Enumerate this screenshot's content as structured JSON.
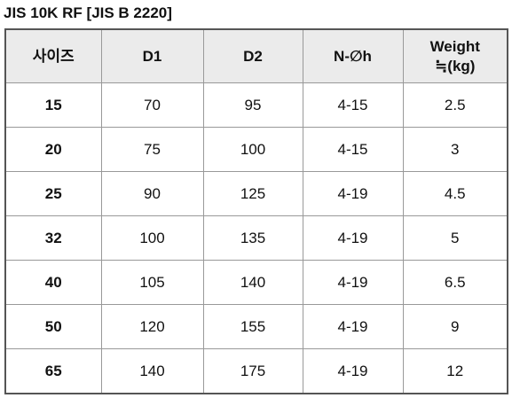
{
  "title": "JIS 10K RF [JIS B 2220]",
  "table": {
    "columns": [
      "사이즈",
      "D1",
      "D2",
      "N-∅h",
      "Weight\n≒(kg)"
    ],
    "rows": [
      [
        15,
        70,
        95,
        "4-15",
        2.5
      ],
      [
        20,
        75,
        100,
        "4-15",
        3
      ],
      [
        25,
        90,
        125,
        "4-19",
        4.5
      ],
      [
        32,
        100,
        135,
        "4-19",
        5
      ],
      [
        40,
        105,
        140,
        "4-19",
        6.5
      ],
      [
        50,
        120,
        155,
        "4-19",
        9
      ],
      [
        65,
        140,
        175,
        "4-19",
        12
      ]
    ]
  }
}
